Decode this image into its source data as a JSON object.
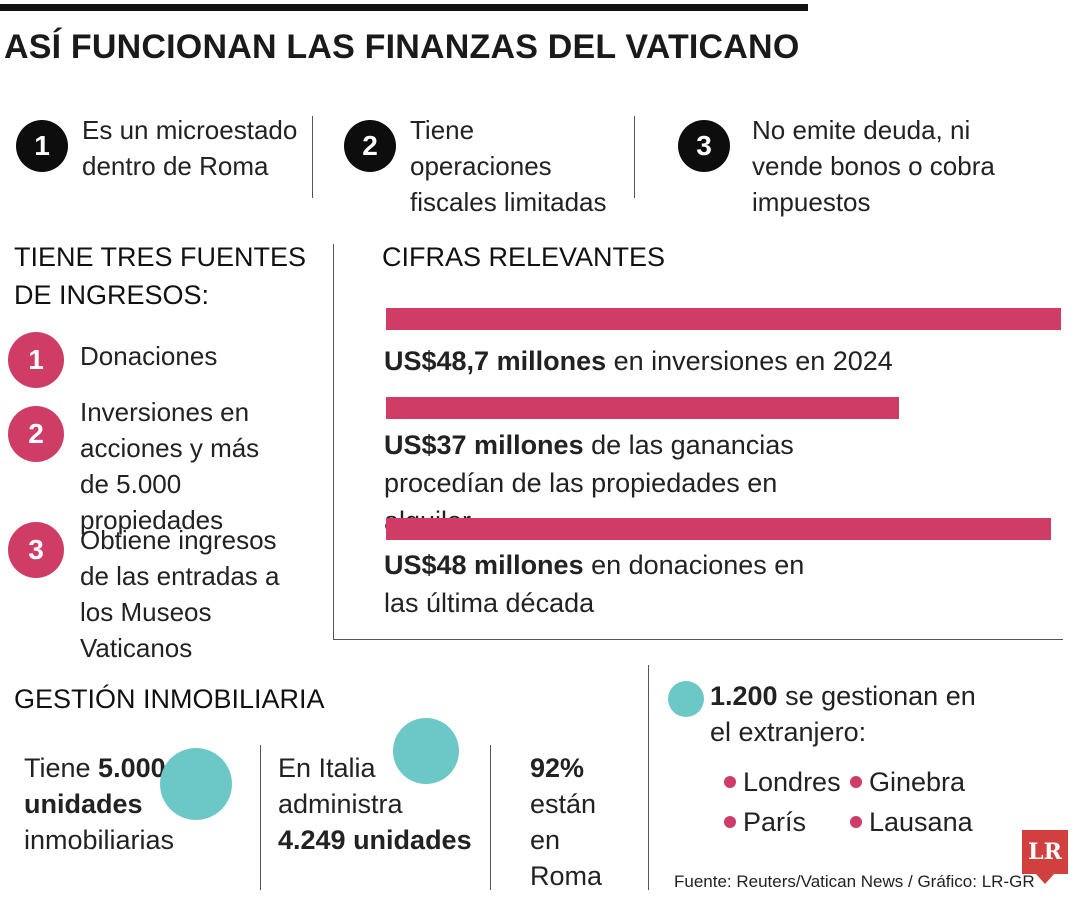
{
  "title": "ASÍ FUNCIONAN LAS FINANZAS DEL VATICANO",
  "facts": [
    {
      "num": "1",
      "text": "Es un microestado dentro de Roma"
    },
    {
      "num": "2",
      "text": "Tiene operaciones fiscales limitadas"
    },
    {
      "num": "3",
      "text": "No emite deuda, ni vende bonos o cobra impuestos"
    }
  ],
  "sources": {
    "title_line1": "TIENE TRES FUENTES",
    "title_line2": "DE INGRESOS:",
    "items": [
      {
        "num": "1",
        "text": "Donaciones"
      },
      {
        "num": "2",
        "text": "Inversiones en acciones y más de 5.000 propiedades"
      },
      {
        "num": "3",
        "text": "Obtiene ingresos de las entradas a los Museos Vaticanos"
      }
    ]
  },
  "chart_data": {
    "type": "bar",
    "title": "CIFRAS RELEVANTES",
    "unit": "US$ millones",
    "colors": {
      "bar": "#cf3c66"
    },
    "bars": [
      {
        "value": 48.7,
        "bold": "US$48,7 millones",
        "rest": " en inversiones en 2024"
      },
      {
        "value": 37,
        "bold": "US$37 millones",
        "rest": " de las ganancias procedían de las propiedades en alquiler"
      },
      {
        "value": 48,
        "bold": "US$48 millones",
        "rest": " en donaciones en las última década"
      }
    ]
  },
  "real_estate": {
    "title": "GESTIÓN INMOBILIARIA",
    "col1": {
      "pre": "Tiene ",
      "bold": "5.000 unidades",
      "post": " inmobiliarias"
    },
    "col2": {
      "pre": "En Italia administra ",
      "bold": "4.249 unidades",
      "post": ""
    },
    "col3": {
      "bold": "92%",
      "post": " están en Roma"
    },
    "abroad": {
      "bold": "1.200",
      "post": " se gestionan en el extranjero:"
    },
    "cities": [
      "Londres",
      "Ginebra",
      "París",
      "Lausana"
    ]
  },
  "footer": "Fuente: Reuters/Vatican News / Gráfico: LR-GR",
  "logo": "LR"
}
